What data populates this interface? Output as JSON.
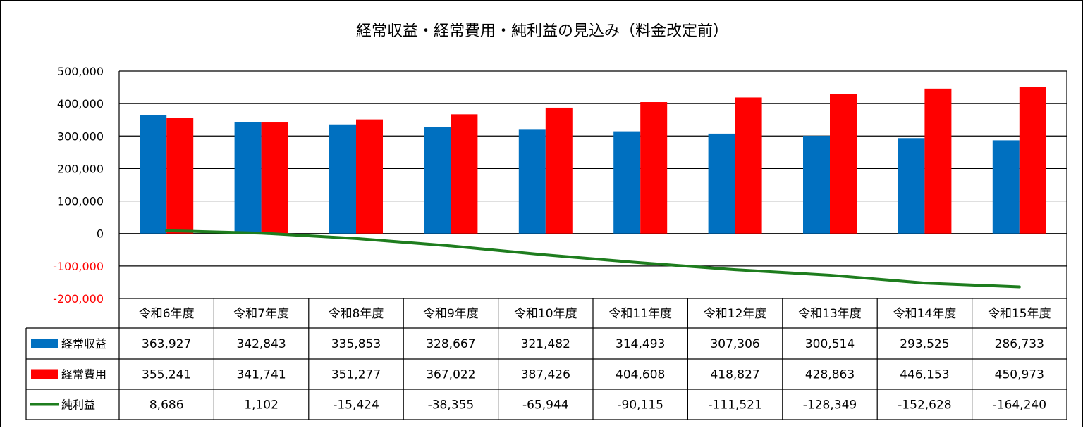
{
  "chart_data": {
    "type": "bar",
    "title": "経常収益・経常費用・純利益の見込み（料金改定前）",
    "categories": [
      "令和6年度",
      "令和7年度",
      "令和8年度",
      "令和9年度",
      "令和10年度",
      "令和11年度",
      "令和12年度",
      "令和13年度",
      "令和14年度",
      "令和15年度"
    ],
    "series": [
      {
        "name": "経常収益",
        "type": "bar",
        "color": "#0070C0",
        "values": [
          363927,
          342843,
          335853,
          328667,
          321482,
          314493,
          307306,
          300514,
          293525,
          286733
        ],
        "labels": [
          "363,927",
          "342,843",
          "335,853",
          "328,667",
          "321,482",
          "314,493",
          "307,306",
          "300,514",
          "293,525",
          "286,733"
        ]
      },
      {
        "name": "経常費用",
        "type": "bar",
        "color": "#FF0000",
        "values": [
          355241,
          341741,
          351277,
          367022,
          387426,
          404608,
          418827,
          428863,
          446153,
          450973
        ],
        "labels": [
          "355,241",
          "341,741",
          "351,277",
          "367,022",
          "387,426",
          "404,608",
          "418,827",
          "428,863",
          "446,153",
          "450,973"
        ]
      },
      {
        "name": "純利益",
        "type": "line",
        "color": "#1E7D1E",
        "values": [
          8686,
          1102,
          -15424,
          -38355,
          -65944,
          -90115,
          -111521,
          -128349,
          -152628,
          -164240
        ],
        "labels": [
          "8,686",
          "1,102",
          "-15,424",
          "-38,355",
          "-65,944",
          "-90,115",
          "-111,521",
          "-128,349",
          "-152,628",
          "-164,240"
        ]
      }
    ],
    "ylim": [
      -200000,
      500000
    ],
    "yticks": [
      500000,
      400000,
      300000,
      200000,
      100000,
      0,
      -100000,
      -200000
    ],
    "ytick_labels": [
      "500,000",
      "400,000",
      "300,000",
      "200,000",
      "100,000",
      "0",
      "-100,000",
      "-200,000"
    ],
    "negative_tick_color": "#FF0000",
    "grid": true,
    "data_table": true
  }
}
